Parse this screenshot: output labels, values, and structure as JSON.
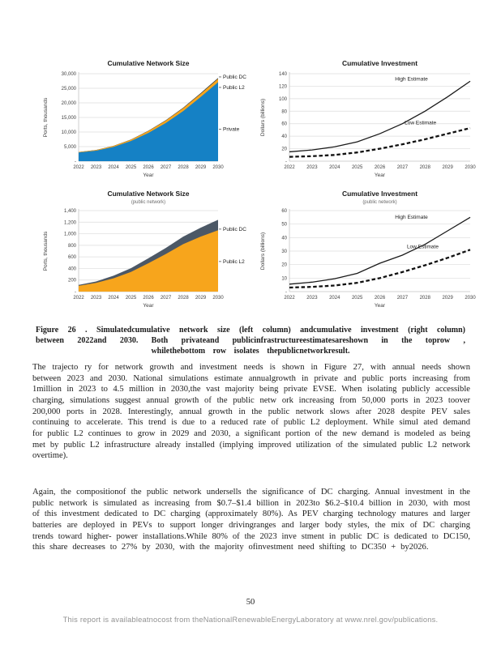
{
  "page": {
    "number": "50",
    "footer_note": "This report is availableatnocost from theNationalRenewableEnergyLaboratory at www.nrel.gov/publications."
  },
  "figure_caption": "Figure 26 . Simulatedcumulative network size (left column) andcumulative investment (right column) between 2022and 2030. Both privateand publicinfrastructureestimatesareshown in the toprow , whilethebottom row isolates thepublicnetworkresult.",
  "paragraphs": [
    "The trajecto ry for network growth and investment needs is shown in Figure 27, with annual needs shown between 2023 and 2030. National simulations estimate annualgrowth in private and public ports increasing from 1million in 2023 to 4.5 million in 2030,the vast majority being private EVSE. When isolating publicly accessible charging, simulations suggest annual growth of the public netw ork increasing from 50,000 ports in 2023 toover 200,000 ports in 2028. Interestingly, annual growth in the public network slows after 2028 despite PEV sales continuing to accelerate. This trend is due to a reduced rate of public L2 deployment. While simul ated demand for public L2 continues to grow in 2029 and 2030, a significant portion of the new demand is modeled as being met by public L2 infrastructure already installed (implying improved utilization of the simulated public L2 network overtime).",
    "Again, the compositionof the public network undersells the significance of DC charging. Annual investment in the public network is simulated as increasing from $0.7–$1.4 billion in 2023to $6.2–$10.4 billion in 2030, with most of this investment dedicated to DC charging (approximately 80%). As PEV charging technology matures and larger batteries are deployed in PEVs to support longer drivingranges and larger body styles, the mix of DC charging trends toward higher- power installations.While 80% of the 2023 inve stment in public DC is dedicated to DC150, this share decreases to 27% by 2030, with the majority ofinvestment need shifting to DC350 + by2026."
  ],
  "chart_data": [
    {
      "id": "chartA",
      "type": "area",
      "title": "Cumulative Network Size",
      "subtitle": "",
      "xlabel": "Year",
      "ylabel": "Ports, thousands",
      "x": [
        "2022",
        "2023",
        "2024",
        "2025",
        "2026",
        "2027",
        "2028",
        "2029",
        "2030"
      ],
      "ylim": [
        0,
        30000
      ],
      "yticks": [
        {
          "v": 0,
          "t": "-"
        },
        {
          "v": 5000,
          "t": "5,000"
        },
        {
          "v": 10000,
          "t": "10,000"
        },
        {
          "v": 15000,
          "t": "15,000"
        },
        {
          "v": 20000,
          "t": "20,000"
        },
        {
          "v": 25000,
          "t": "25,000"
        },
        {
          "v": 30000,
          "t": "30,000"
        }
      ],
      "series": [
        {
          "name": "Private",
          "values": [
            3000,
            3600,
            4900,
            6900,
            9700,
            13100,
            17200,
            22000,
            27100
          ],
          "color": "#1581C5"
        },
        {
          "name": "Public L2",
          "values": [
            150,
            220,
            330,
            470,
            640,
            820,
            980,
            1100,
            1150
          ],
          "color": "#F7A51C"
        },
        {
          "name": "Public DC",
          "values": [
            15,
            25,
            45,
            75,
            110,
            150,
            195,
            245,
            300
          ],
          "color": "#2F3B46"
        }
      ],
      "annotations": [
        {
          "text": "Public DC",
          "side": "right",
          "v": 28900
        },
        {
          "text": "Public L2",
          "side": "right",
          "v": 25300
        },
        {
          "text": "Private",
          "side": "right",
          "v": 11000
        }
      ]
    },
    {
      "id": "chartB",
      "type": "line",
      "title": "Cumulative Investment",
      "subtitle": "",
      "xlabel": "Year",
      "ylabel": "Dollars (billions)",
      "x": [
        "2022",
        "2023",
        "2024",
        "2025",
        "2026",
        "2027",
        "2028",
        "2029",
        "2030"
      ],
      "ylim": [
        0,
        140
      ],
      "yticks": [
        {
          "v": 0,
          "t": "-"
        },
        {
          "v": 20,
          "t": "20"
        },
        {
          "v": 40,
          "t": "40"
        },
        {
          "v": 60,
          "t": "60"
        },
        {
          "v": 80,
          "t": "80"
        },
        {
          "v": 100,
          "t": "100"
        },
        {
          "v": 120,
          "t": "120"
        },
        {
          "v": 140,
          "t": "140"
        }
      ],
      "series": [
        {
          "name": "High Estimate",
          "values": [
            15,
            18,
            23,
            31,
            44,
            60,
            80,
            103,
            128
          ],
          "style": "solid",
          "color": "#1a1a1a"
        },
        {
          "name": "Low Estimate",
          "values": [
            7,
            8,
            10,
            14,
            20,
            27,
            35,
            44,
            53
          ],
          "style": "dashed",
          "color": "#111111"
        }
      ],
      "annotations": [
        {
          "text": "High Estimate",
          "side": "in",
          "xi": 5.4,
          "v": 129
        },
        {
          "text": "Low Estimate",
          "side": "in",
          "xi": 5.8,
          "v": 59
        }
      ]
    },
    {
      "id": "chartC",
      "type": "area",
      "title": "Cumulative Network Size",
      "subtitle": "(public network)",
      "xlabel": "Year",
      "ylabel": "Ports, thousands",
      "x": [
        "2022",
        "2023",
        "2024",
        "2025",
        "2026",
        "2027",
        "2028",
        "2029",
        "2030"
      ],
      "ylim": [
        0,
        1400
      ],
      "yticks": [
        {
          "v": 0,
          "t": "-"
        },
        {
          "v": 200,
          "t": "200"
        },
        {
          "v": 400,
          "t": "400"
        },
        {
          "v": 600,
          "t": "600"
        },
        {
          "v": 800,
          "t": "800"
        },
        {
          "v": 1000,
          "t": "1,000"
        },
        {
          "v": 1200,
          "t": "1,200"
        },
        {
          "v": 1400,
          "t": "1,400"
        }
      ],
      "series": [
        {
          "name": "Public L2",
          "values": [
            100,
            150,
            230,
            340,
            490,
            650,
            820,
            950,
            1060
          ],
          "color": "#F7A51C"
        },
        {
          "name": "Public DC",
          "values": [
            15,
            25,
            45,
            65,
            85,
            105,
            130,
            155,
            180
          ],
          "color": "#4C5866"
        }
      ],
      "annotations": [
        {
          "text": "Public DC",
          "side": "right",
          "v": 1080
        },
        {
          "text": "Public L2",
          "side": "right",
          "v": 520
        }
      ]
    },
    {
      "id": "chartD",
      "type": "line",
      "title": "Cumulative Investment",
      "subtitle": "(public network)",
      "xlabel": "Year",
      "ylabel": "Dollars (billions)",
      "x": [
        "2022",
        "2023",
        "2024",
        "2025",
        "2026",
        "2027",
        "2028",
        "2029",
        "2030"
      ],
      "ylim": [
        0,
        60
      ],
      "yticks": [
        {
          "v": 0,
          "t": "-"
        },
        {
          "v": 10,
          "t": "10"
        },
        {
          "v": 20,
          "t": "20"
        },
        {
          "v": 30,
          "t": "30"
        },
        {
          "v": 40,
          "t": "40"
        },
        {
          "v": 50,
          "t": "50"
        },
        {
          "v": 60,
          "t": "60"
        }
      ],
      "series": [
        {
          "name": "High Estimate",
          "values": [
            5.5,
            7,
            9.5,
            13.5,
            21,
            27,
            35,
            45,
            55
          ],
          "style": "solid",
          "color": "#1a1a1a"
        },
        {
          "name": "Low Estimate",
          "values": [
            3,
            3.5,
            4.5,
            6.5,
            10,
            14.5,
            19.5,
            25,
            31
          ],
          "style": "dashed",
          "color": "#111111"
        }
      ],
      "annotations": [
        {
          "text": "High Estimate",
          "side": "in",
          "xi": 5.4,
          "v": 54
        },
        {
          "text": "Low Estimate",
          "side": "in",
          "xi": 5.9,
          "v": 32
        }
      ]
    }
  ]
}
